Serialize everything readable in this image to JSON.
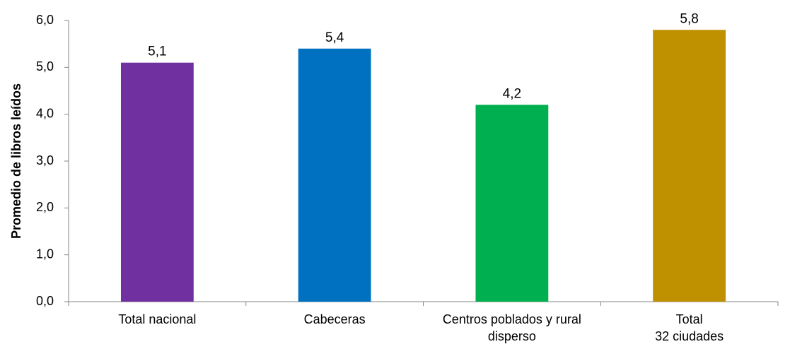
{
  "chart_data": {
    "type": "bar",
    "categories": [
      [
        "Total nacional"
      ],
      [
        "Cabeceras"
      ],
      [
        "Centros poblados y rural",
        "disperso"
      ],
      [
        "Total",
        "32 ciudades"
      ]
    ],
    "values": [
      5.1,
      5.4,
      4.2,
      5.8
    ],
    "value_labels": [
      "5,1",
      "5,4",
      "4,2",
      "5,8"
    ],
    "colors": [
      "#7030A0",
      "#0070C0",
      "#00B050",
      "#BF9000"
    ],
    "ylabel": "Promedio de libros leídos",
    "ylim": [
      0,
      6
    ],
    "y_ticks": [
      0,
      1,
      2,
      3,
      4,
      5,
      6
    ],
    "y_tick_labels": [
      "0,0",
      "1,0",
      "2,0",
      "3,0",
      "4,0",
      "5,0",
      "6,0"
    ],
    "grid": false,
    "legend": "none"
  }
}
